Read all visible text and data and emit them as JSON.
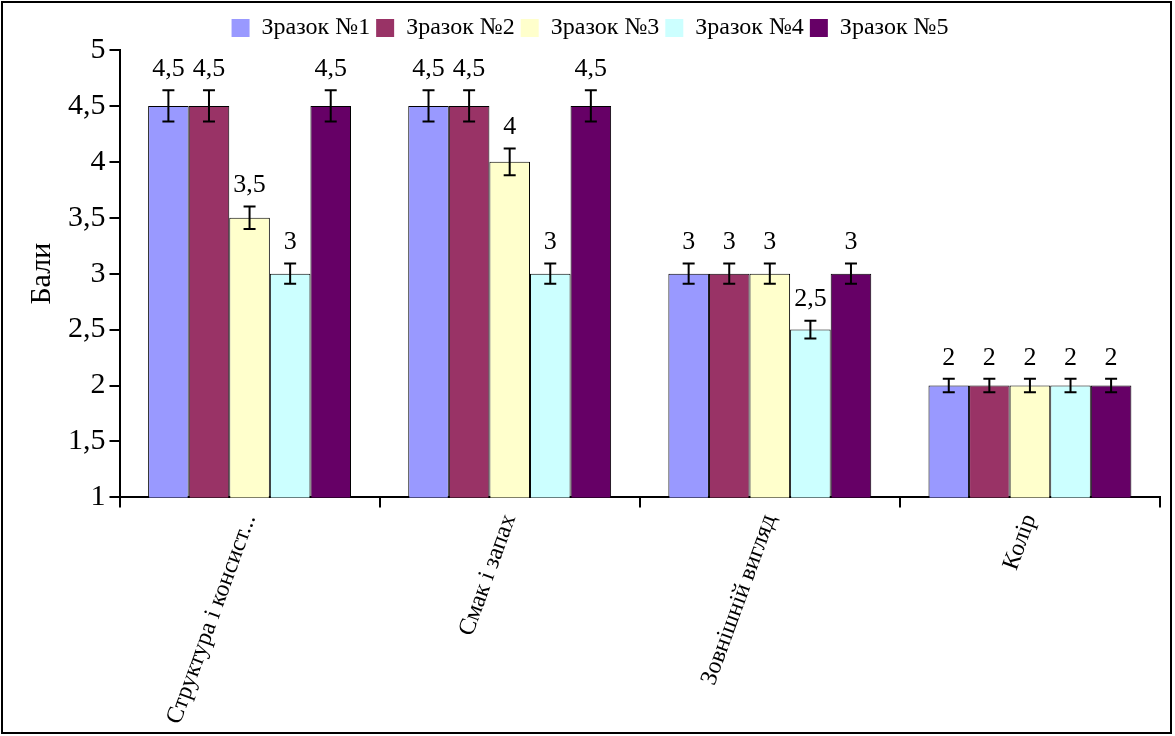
{
  "chart_data": {
    "type": "bar",
    "ylabel": "Бали",
    "categories": [
      "Структура і консист...",
      "Смак і запах",
      "Зовнішній вигляд",
      "Колір"
    ],
    "series": [
      {
        "name": "Зразок №1",
        "color": "#9999ff",
        "values": [
          4.5,
          4.5,
          3,
          2
        ],
        "errors": [
          0.14,
          0.14,
          0.09,
          0.06
        ],
        "value_labels": [
          "4,5",
          "4,5",
          "3",
          "2"
        ]
      },
      {
        "name": "Зразок №2",
        "color": "#993366",
        "values": [
          4.5,
          4.5,
          3,
          2
        ],
        "errors": [
          0.14,
          0.14,
          0.09,
          0.06
        ],
        "value_labels": [
          "4,5",
          "4,5",
          "3",
          "2"
        ]
      },
      {
        "name": "Зразок №3",
        "color": "#ffffcc",
        "values": [
          3.5,
          4,
          3,
          2
        ],
        "errors": [
          0.1,
          0.12,
          0.09,
          0.06
        ],
        "value_labels": [
          "3,5",
          "4",
          "3",
          "2"
        ]
      },
      {
        "name": "Зразок №4",
        "color": "#ccffff",
        "values": [
          3,
          3,
          2.5,
          2
        ],
        "errors": [
          0.09,
          0.09,
          0.08,
          0.06
        ],
        "value_labels": [
          "3",
          "3",
          "2,5",
          "2"
        ]
      },
      {
        "name": "Зразок №5",
        "color": "#660066",
        "values": [
          4.5,
          4.5,
          3,
          2
        ],
        "errors": [
          0.14,
          0.14,
          0.09,
          0.06
        ],
        "value_labels": [
          "4,5",
          "4,5",
          "3",
          "2"
        ]
      }
    ],
    "ylim": [
      1,
      5
    ],
    "yticks": [
      1,
      {
        "value": 1.5,
        "label": "1,5"
      },
      2,
      {
        "value": 2.5,
        "label": "2,5"
      },
      3,
      {
        "value": 3.5,
        "label": "3,5"
      },
      4,
      {
        "value": 4.5,
        "label": "4,5"
      },
      5
    ],
    "grid": false,
    "legend": "top"
  }
}
